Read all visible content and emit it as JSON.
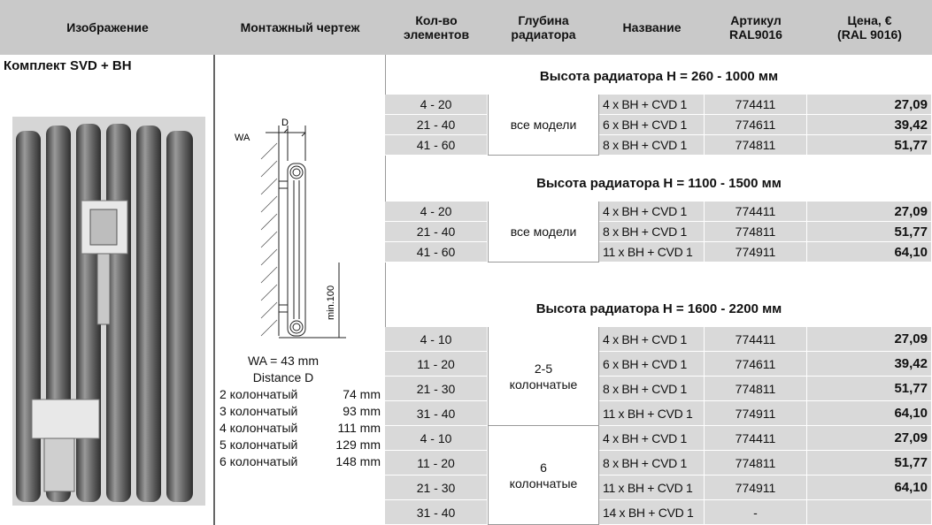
{
  "header": [
    "Изображение",
    "Монтажный чертеж",
    "Кол-во\nэлементов",
    "Глубина\nрадиатора",
    "Название",
    "Артикул\nRAL9016",
    "Цена, €\n(RAL 9016)"
  ],
  "product": {
    "title": "Комплект SVD + BH"
  },
  "drawing": {
    "label_d": "D",
    "label_wa": "WA",
    "label_min": "min.100",
    "wa_note": "WA = 43 mm",
    "distance_title": "Distance D",
    "distances": [
      [
        "2 колончатый",
        "74 mm"
      ],
      [
        "3 колончатый",
        "93 mm"
      ],
      [
        "4 колончатый",
        "111 mm"
      ],
      [
        "5 колончатый",
        "129 mm"
      ],
      [
        "6 колончатый",
        "148 mm"
      ]
    ]
  },
  "sections": [
    {
      "title": "Высота радиатора H = 260 - 1000 мм",
      "groups": [
        {
          "depth": "все модели",
          "rows": [
            [
              "4 - 20",
              "4 x BH + CVD 1",
              "774411",
              "27,09"
            ],
            [
              "21 - 40",
              "6 x BH + CVD 1",
              "774611",
              "39,42"
            ],
            [
              "41 - 60",
              "8 x BH + CVD 1",
              "774811",
              "51,77"
            ]
          ]
        }
      ]
    },
    {
      "title": "Высота радиатора H = 1100 - 1500 мм",
      "groups": [
        {
          "depth": "все модели",
          "rows": [
            [
              "4 - 20",
              "4 x BH + CVD 1",
              "774411",
              "27,09"
            ],
            [
              "21 - 40",
              "8 x BH + CVD 1",
              "774811",
              "51,77"
            ],
            [
              "41 - 60",
              "11 x BH + CVD 1",
              "774911",
              "64,10"
            ]
          ]
        }
      ]
    },
    {
      "title": "Высота радиатора H = 1600 - 2200 мм",
      "groups": [
        {
          "depth": "2-5\nколончатые",
          "rows": [
            [
              "4 - 10",
              "4 x BH + CVD 1",
              "774411",
              "27,09"
            ],
            [
              "11 - 20",
              "6 x BH + CVD 1",
              "774611",
              "39,42"
            ],
            [
              "21 - 30",
              "8 x BH + CVD 1",
              "774811",
              "51,77"
            ],
            [
              "31 - 40",
              "11 x BH + CVD 1",
              "774911",
              "64,10"
            ]
          ]
        },
        {
          "depth": "6\nколончатые",
          "rows": [
            [
              "4 - 10",
              "4 x BH + CVD 1",
              "774411",
              "27,09"
            ],
            [
              "11 - 20",
              "8 x BH + CVD 1",
              "774811",
              "51,77"
            ],
            [
              "21 - 30",
              "11 x BH + CVD 1",
              "774911",
              "64,10"
            ],
            [
              "31 - 40",
              "14 x BH + CVD 1",
              "-"
            ]
          ]
        }
      ]
    }
  ]
}
